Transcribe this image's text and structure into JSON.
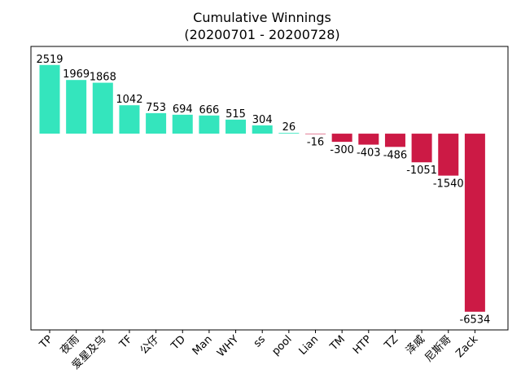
{
  "chart_data": {
    "type": "bar",
    "title_line1": "Cumulative Winnings",
    "title_line2": "(20200701 - 20200728)",
    "xlabel": "",
    "ylabel": "",
    "categories": [
      "TP",
      "夜雨",
      "爱星及乌",
      "TF",
      "公仔",
      "TD",
      "Man",
      "WHY",
      "ss",
      "pool",
      "Lian",
      "TM",
      "HTP",
      "TZ",
      "泽威",
      "尼斯哥",
      "Zack"
    ],
    "values": [
      2519,
      1969,
      1868,
      1042,
      753,
      694,
      666,
      515,
      304,
      26,
      -16,
      -300,
      -403,
      -486,
      -1051,
      -1540,
      -6534
    ],
    "ylim": [
      -7200,
      3200
    ],
    "grid": false,
    "legend": "none",
    "colors": {
      "positive": "#34e5bd",
      "negative": "#cc1a45",
      "axes": "#000000"
    }
  }
}
